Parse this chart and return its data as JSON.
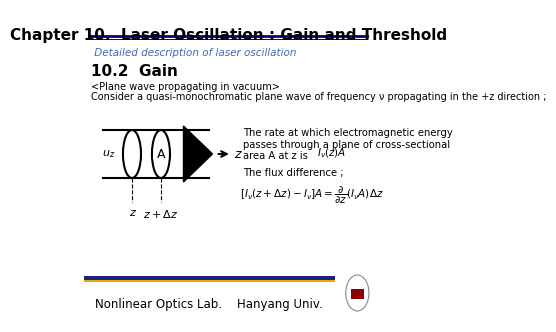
{
  "title": "Chapter 10.  Laser Oscillation : Gain and Threshold",
  "subtitle": " Detailed description of laser oscillation",
  "section": "10.2  Gain",
  "plane_wave_text": "<Plane wave propagating in vacuum>",
  "consider_text": "Consider a quasi-monochromatic plane wave of frequency ν propagating in the +z direction ;",
  "right_text1": "The rate at which electromagnetic energy\npasses through a plane of cross-sectional\narea A at z is",
  "right_text1_formula": "$I_\\nu(z)A$",
  "right_text2": "The flux difference ;",
  "flux_formula": "$[I_\\nu(z+\\Delta z)-I_\\nu]A=\\dfrac{\\partial}{\\partial z}(I_\\nu A)\\Delta z$",
  "label_uz": "$u_z$",
  "label_A": "A",
  "label_z1": "z",
  "label_z2": "$z+\\Delta z$",
  "label_z_arrow": "z",
  "footer_text": "Nonlinear Optics Lab.    Hanyang Univ.",
  "bar_color_gold": "#F0A500",
  "bar_color_blue": "#1A237E",
  "background_color": "#FFFFFF",
  "title_color": "#000000",
  "subtitle_color": "#4169B0",
  "title_underline_color": "#00008B",
  "section_color": "#000000",
  "body_text_color": "#000000",
  "footer_text_color": "#000000"
}
